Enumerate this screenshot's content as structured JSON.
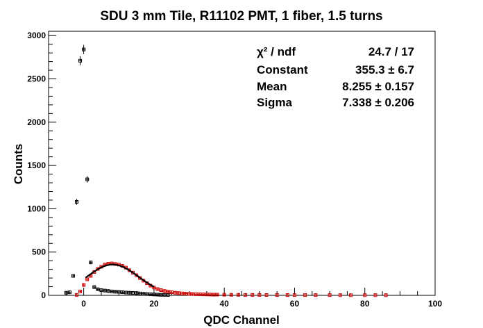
{
  "chart_data": {
    "type": "scatter",
    "title": "SDU 3 mm Tile, R11102 PMT, 1 fiber, 1.5 turns",
    "xlabel": "QDC Channel",
    "ylabel": "Counts",
    "xlim": [
      -10,
      100
    ],
    "ylim": [
      0,
      3050
    ],
    "x_ticks": [
      0,
      20,
      40,
      60,
      80,
      100
    ],
    "y_ticks": [
      0,
      500,
      1000,
      1500,
      2000,
      2500,
      3000
    ],
    "grid": false,
    "stats_box": {
      "placement": "top-right",
      "rows": [
        {
          "label": "χ² / ndf",
          "value": "24.7 / 17"
        },
        {
          "label": "Constant",
          "value": "355.3 ± 6.7"
        },
        {
          "label": "Mean",
          "value": "8.255 ± 0.157"
        },
        {
          "label": "Sigma",
          "value": "7.338 ± 0.206"
        }
      ]
    },
    "series": [
      {
        "color": "#000000",
        "x": [
          -5,
          -4,
          -3,
          -2,
          -1,
          0,
          1,
          2,
          3,
          4,
          5,
          6,
          7,
          8,
          9,
          10,
          11,
          12,
          13,
          14,
          15,
          16,
          17,
          18,
          19,
          20,
          21,
          22,
          23,
          24
        ],
        "y": [
          30,
          35,
          225,
          1080,
          2710,
          2840,
          1340,
          380,
          95,
          70,
          60,
          55,
          50,
          45,
          42,
          40,
          36,
          32,
          30,
          28,
          26,
          22,
          18,
          15,
          12,
          10,
          8,
          6,
          5,
          4
        ]
      },
      {
        "color": "#cc0000",
        "x": [
          -2,
          -1,
          0,
          1,
          2,
          3,
          4,
          5,
          6,
          7,
          8,
          9,
          10,
          11,
          12,
          13,
          14,
          15,
          16,
          17,
          18,
          19,
          20,
          21,
          22,
          23,
          24,
          25,
          26,
          27,
          28,
          29,
          30,
          31,
          32,
          33,
          34,
          35,
          36,
          37,
          38,
          40,
          42,
          44,
          46,
          48,
          50,
          52,
          55,
          58,
          60,
          63,
          66,
          70,
          73,
          76,
          80,
          83,
          86
        ],
        "y": [
          5,
          45,
          120,
          185,
          225,
          270,
          305,
          330,
          355,
          365,
          368,
          362,
          355,
          340,
          320,
          290,
          262,
          232,
          200,
          170,
          140,
          112,
          90,
          72,
          60,
          50,
          42,
          36,
          30,
          26,
          22,
          20,
          17,
          15,
          13,
          12,
          11,
          10,
          9,
          8,
          8,
          7,
          6,
          6,
          5,
          5,
          5,
          4,
          4,
          4,
          3,
          3,
          3,
          3,
          2,
          2,
          2,
          2,
          2
        ]
      }
    ],
    "fit": {
      "type": "gaussian",
      "color": "#000000",
      "constant": 355.3,
      "mean": 8.255,
      "sigma": 7.338,
      "x_range": [
        0.5,
        20
      ]
    }
  }
}
